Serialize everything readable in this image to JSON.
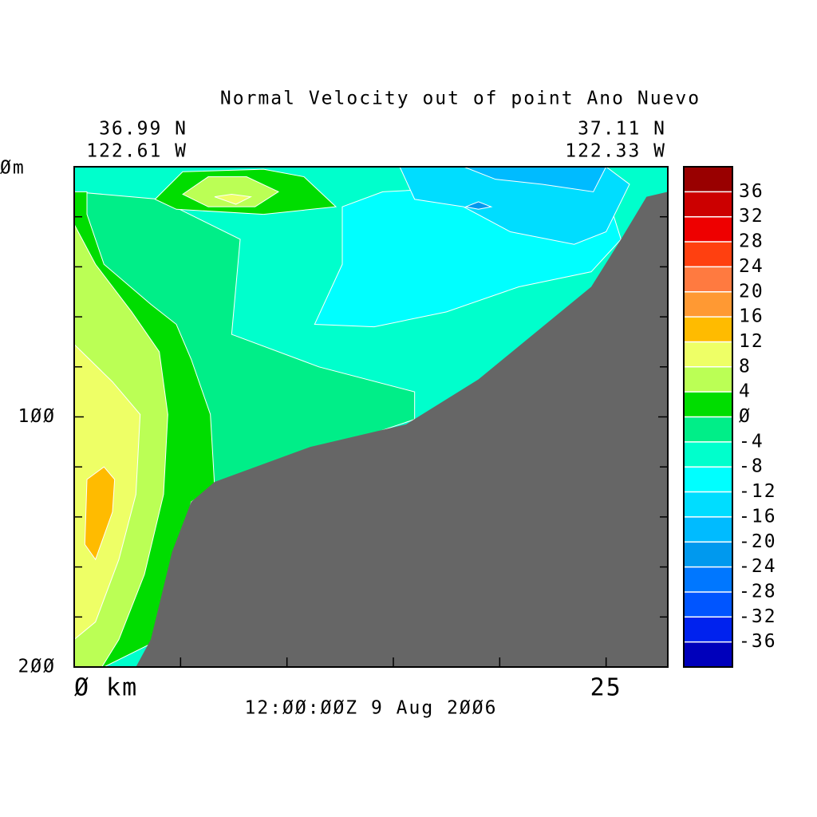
{
  "chart_data": {
    "type": "contour",
    "title": "Normal Velocity out of point Ano Nuevo",
    "left_corner": [
      "36.99 N",
      "122.61 W"
    ],
    "right_corner": [
      "37.11 N",
      "122.33 W"
    ],
    "time_label": "12:ØØ:ØØZ   9 Aug 2ØØ6",
    "xlim": [
      0,
      27.9
    ],
    "xticks": [
      {
        "value": 0,
        "label": "Ø km"
      },
      25
    ],
    "xminorticks": [
      5,
      10,
      15,
      20
    ],
    "ylim": [
      0,
      200
    ],
    "y_inverted": true,
    "yticks": [
      {
        "value": 0,
        "label": "Øm"
      },
      {
        "value": 100,
        "label": "1ØØ"
      },
      {
        "value": 200,
        "label": "2ØØ"
      }
    ],
    "yminorticks": [
      20,
      40,
      60,
      80,
      120,
      140,
      160,
      180
    ],
    "colorbar": {
      "lim": [
        -40,
        40
      ],
      "colors": [
        "#0000bb",
        "#0022ee",
        "#0055ff",
        "#0077ff",
        "#0099ee",
        "#00bbff",
        "#00ddff",
        "#00ffff",
        "#00ffcc",
        "#00ee88",
        "#00dd00",
        "#bbff55",
        "#eeff66",
        "#ffbb00",
        "#ff9933",
        "#ff7a40",
        "#ff4010",
        "#ee0000",
        "#cc0000",
        "#990000"
      ],
      "ticks": [
        -36,
        -32,
        -28,
        -24,
        -20,
        -16,
        -12,
        -8,
        -4,
        {
          "value": 0,
          "label": "Ø"
        },
        4,
        8,
        12,
        16,
        20,
        24,
        28,
        32,
        36
      ]
    },
    "bands": [
      {
        "level": -8,
        "polygon": [
          [
            0,
            0
          ],
          [
            27.9,
            0
          ],
          [
            27.9,
            200
          ],
          [
            0,
            200
          ]
        ]
      },
      {
        "level": -4,
        "polygon": [
          [
            0,
            10
          ],
          [
            4.0,
            13
          ],
          [
            7.8,
            29
          ],
          [
            7.4,
            67
          ],
          [
            11.5,
            80
          ],
          [
            16.0,
            90
          ],
          [
            16.0,
            101
          ],
          [
            6.6,
            128
          ],
          [
            0,
            128
          ]
        ]
      },
      {
        "level": -12,
        "polygon": [
          [
            12.6,
            16
          ],
          [
            14.5,
            10
          ],
          [
            19.0,
            8
          ],
          [
            23.5,
            13
          ],
          [
            25.0,
            10
          ],
          [
            25.7,
            29
          ],
          [
            24.3,
            42
          ],
          [
            20.9,
            48
          ],
          [
            17.5,
            58
          ],
          [
            14.1,
            64
          ],
          [
            11.3,
            63
          ],
          [
            12.6,
            39
          ]
        ]
      },
      {
        "level": -16,
        "polygon": [
          [
            15.3,
            0
          ],
          [
            25.0,
            0
          ],
          [
            26.1,
            7
          ],
          [
            25.0,
            26
          ],
          [
            23.5,
            31
          ],
          [
            20.5,
            26
          ],
          [
            18.3,
            16
          ],
          [
            16.0,
            13
          ]
        ]
      },
      {
        "level": -20,
        "polygon": [
          [
            18.3,
            0
          ],
          [
            25.0,
            0
          ],
          [
            24.4,
            10
          ],
          [
            22.0,
            7
          ],
          [
            19.8,
            5
          ]
        ]
      },
      {
        "level": -24,
        "polygon": [
          [
            18.4,
            16
          ],
          [
            19.0,
            14
          ],
          [
            19.6,
            16
          ],
          [
            19.0,
            17
          ]
        ]
      },
      {
        "level": 0,
        "polygon": [
          [
            3.8,
            13
          ],
          [
            5.1,
            2
          ],
          [
            8.9,
            1
          ],
          [
            10.8,
            4
          ],
          [
            12.3,
            16
          ],
          [
            8.9,
            19
          ],
          [
            4.8,
            17
          ]
        ]
      },
      {
        "level": 4,
        "polygon": [
          [
            5.1,
            11
          ],
          [
            6.3,
            4
          ],
          [
            8.1,
            4
          ],
          [
            9.6,
            10
          ],
          [
            8.5,
            16
          ],
          [
            6.3,
            16
          ]
        ]
      },
      {
        "level": 8,
        "polygon": [
          [
            6.6,
            12
          ],
          [
            7.4,
            11
          ],
          [
            8.3,
            12
          ],
          [
            7.6,
            15
          ]
        ]
      },
      {
        "level": 0,
        "polygon": [
          [
            0,
            10
          ],
          [
            0.6,
            10
          ],
          [
            0.6,
            19
          ],
          [
            1.4,
            39
          ],
          [
            3.6,
            55
          ],
          [
            4.8,
            63
          ],
          [
            5.5,
            77
          ],
          [
            6.4,
            99
          ],
          [
            6.6,
            128
          ],
          [
            5.5,
            134
          ],
          [
            4.0,
            189
          ],
          [
            1.4,
            200
          ],
          [
            0,
            200
          ]
        ]
      },
      {
        "level": 4,
        "polygon": [
          [
            0,
            23
          ],
          [
            1.0,
            39
          ],
          [
            2.7,
            58
          ],
          [
            4.0,
            74
          ],
          [
            4.4,
            99
          ],
          [
            4.2,
            131
          ],
          [
            3.3,
            163
          ],
          [
            2.1,
            189
          ],
          [
            1.3,
            200
          ],
          [
            0,
            200
          ]
        ]
      },
      {
        "level": 8,
        "polygon": [
          [
            0,
            71
          ],
          [
            1.8,
            86
          ],
          [
            3.1,
            99
          ],
          [
            2.9,
            131
          ],
          [
            2.1,
            157
          ],
          [
            1.0,
            182
          ],
          [
            0,
            189
          ]
        ]
      },
      {
        "level": 12,
        "polygon": [
          [
            0.6,
            125
          ],
          [
            1.4,
            120
          ],
          [
            1.9,
            125
          ],
          [
            1.8,
            138
          ],
          [
            1.0,
            157
          ],
          [
            0.5,
            151
          ]
        ]
      }
    ],
    "bottom": {
      "x": [
        2.9,
        3.6,
        4.6,
        5.5,
        6.6,
        11.1,
        15.6,
        19.0,
        24.3,
        25.7,
        26.9,
        27.9
      ],
      "depth": [
        200,
        189,
        154,
        134,
        126,
        112,
        103,
        85,
        48,
        29,
        12,
        10
      ]
    }
  }
}
